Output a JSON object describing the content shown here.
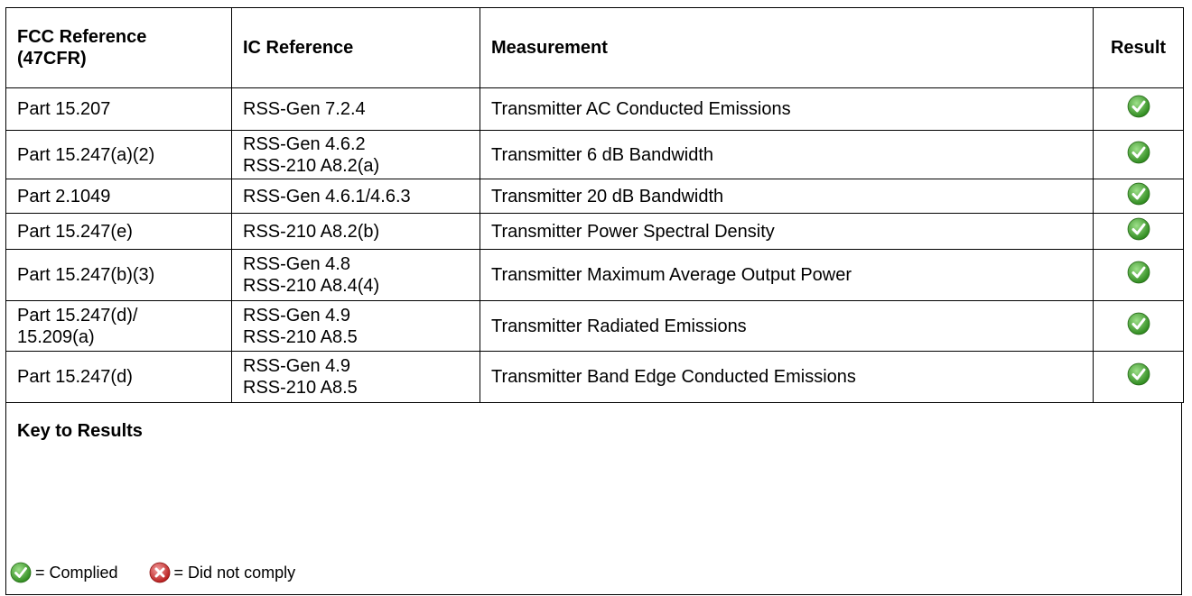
{
  "table": {
    "headers": [
      [
        "FCC Reference",
        "(47CFR)"
      ],
      [
        "IC Reference"
      ],
      [
        "Measurement"
      ],
      [
        "Result"
      ]
    ],
    "rows": [
      [
        [
          "Part 15.207"
        ],
        [
          "RSS-Gen 7.2.4"
        ],
        [
          "Transmitter AC Conducted Emissions"
        ]
      ],
      [
        [
          "Part 15.247(a)(2)"
        ],
        [
          "RSS-Gen 4.6.2",
          "RSS-210 A8.2(a)"
        ],
        [
          "Transmitter 6 dB Bandwidth"
        ]
      ],
      [
        [
          "Part 2.1049"
        ],
        [
          "RSS-Gen 4.6.1/4.6.3"
        ],
        [
          "Transmitter 20 dB Bandwidth"
        ]
      ],
      [
        [
          "Part 15.247(e)"
        ],
        [
          "RSS-210 A8.2(b)"
        ],
        [
          "Transmitter Power Spectral Density"
        ]
      ],
      [
        [
          "Part 15.247(b)(3)"
        ],
        [
          "RSS-Gen 4.8",
          "RSS-210 A8.4(4)"
        ],
        [
          "Transmitter Maximum Average Output Power"
        ]
      ],
      [
        [
          "Part 15.247(d)/",
          "15.209(a)"
        ],
        [
          "RSS-Gen 4.9",
          "RSS-210 A8.5"
        ],
        [
          "Transmitter Radiated Emissions"
        ]
      ],
      [
        [
          "Part 15.247(d)"
        ],
        [
          "RSS-Gen 4.9",
          "RSS-210 A8.5"
        ],
        [
          "Transmitter Band Edge Conducted Emissions"
        ]
      ]
    ]
  },
  "key": {
    "title": "Key to Results",
    "complied": "= Complied",
    "not_complied": "= Did not comply"
  }
}
